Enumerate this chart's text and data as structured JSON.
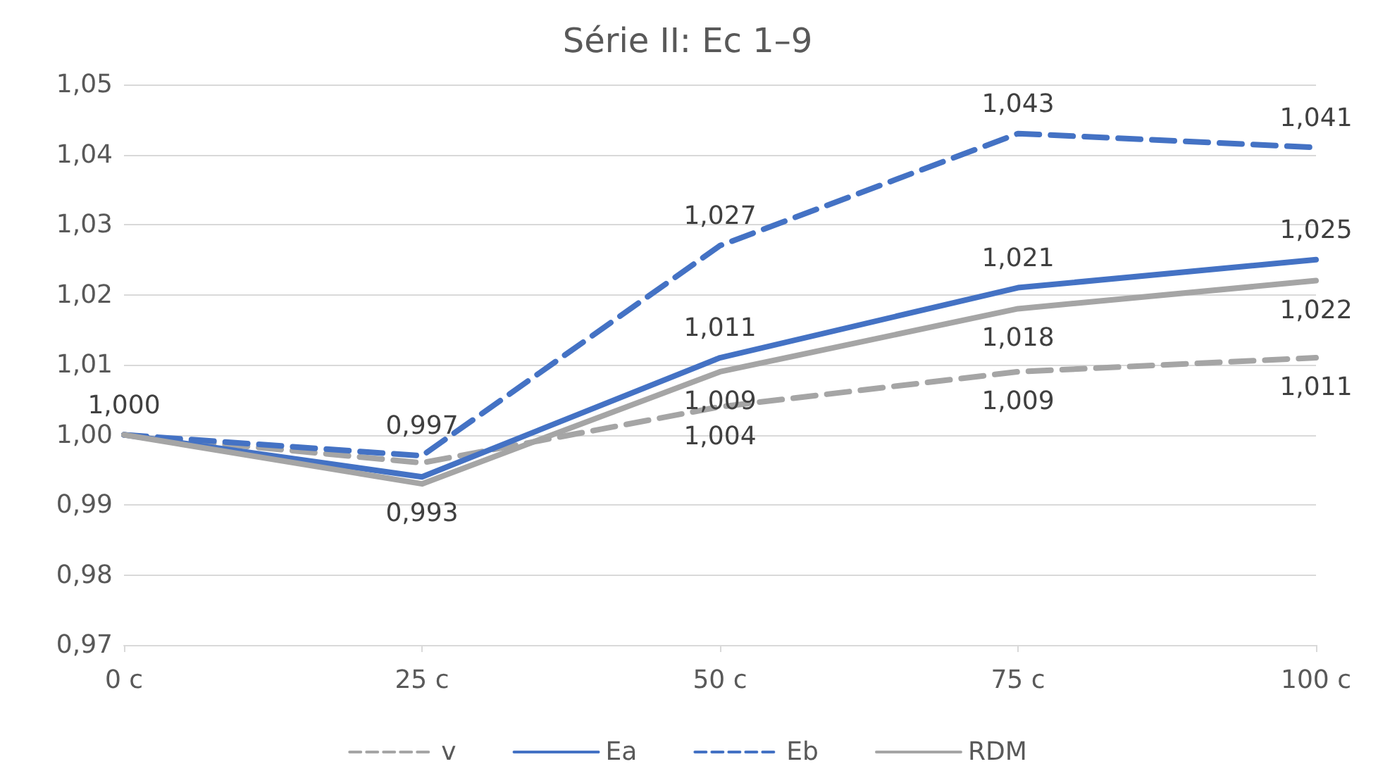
{
  "chart_data": {
    "type": "line",
    "title": "Série II: Ec 1–9",
    "categories": [
      "0 c",
      "25 c",
      "50 c",
      "75 c",
      "100 c"
    ],
    "series": [
      {
        "name": "v",
        "color": "#a5a5a5",
        "line_style": "dashed",
        "values": [
          1.0,
          0.996,
          1.004,
          1.009,
          1.011
        ],
        "value_labels": [
          null,
          null,
          "1,004",
          "1,009",
          "1,011"
        ]
      },
      {
        "name": "Ea",
        "color": "#4472c4",
        "line_style": "solid",
        "values": [
          1.0,
          0.994,
          1.011,
          1.021,
          1.025
        ],
        "value_labels": [
          null,
          null,
          "1,011",
          "1,021",
          "1,025"
        ]
      },
      {
        "name": "Eb",
        "color": "#4472c4",
        "line_style": "dashed",
        "values": [
          1.0,
          0.997,
          1.027,
          1.043,
          1.041
        ],
        "value_labels": [
          "1,000",
          "0,997",
          "1,027",
          "1,043",
          "1,041"
        ]
      },
      {
        "name": "RDM",
        "color": "#a5a5a5",
        "line_style": "solid",
        "values": [
          1.0,
          0.993,
          1.009,
          1.018,
          1.022
        ],
        "value_labels": [
          null,
          "0,993",
          "1,009",
          "1,018",
          "1,022"
        ]
      }
    ],
    "ylim": [
      0.97,
      1.05
    ],
    "yticks": [
      {
        "value": 0.97,
        "label": "0,97"
      },
      {
        "value": 0.98,
        "label": "0,98"
      },
      {
        "value": 0.99,
        "label": "0,99"
      },
      {
        "value": 1.0,
        "label": "1,00"
      },
      {
        "value": 1.01,
        "label": "1,01"
      },
      {
        "value": 1.02,
        "label": "1,02"
      },
      {
        "value": 1.03,
        "label": "1,03"
      },
      {
        "value": 1.04,
        "label": "1,04"
      },
      {
        "value": 1.05,
        "label": "1,05"
      }
    ],
    "grid": "y",
    "legend": "bottom",
    "marker": "none"
  }
}
